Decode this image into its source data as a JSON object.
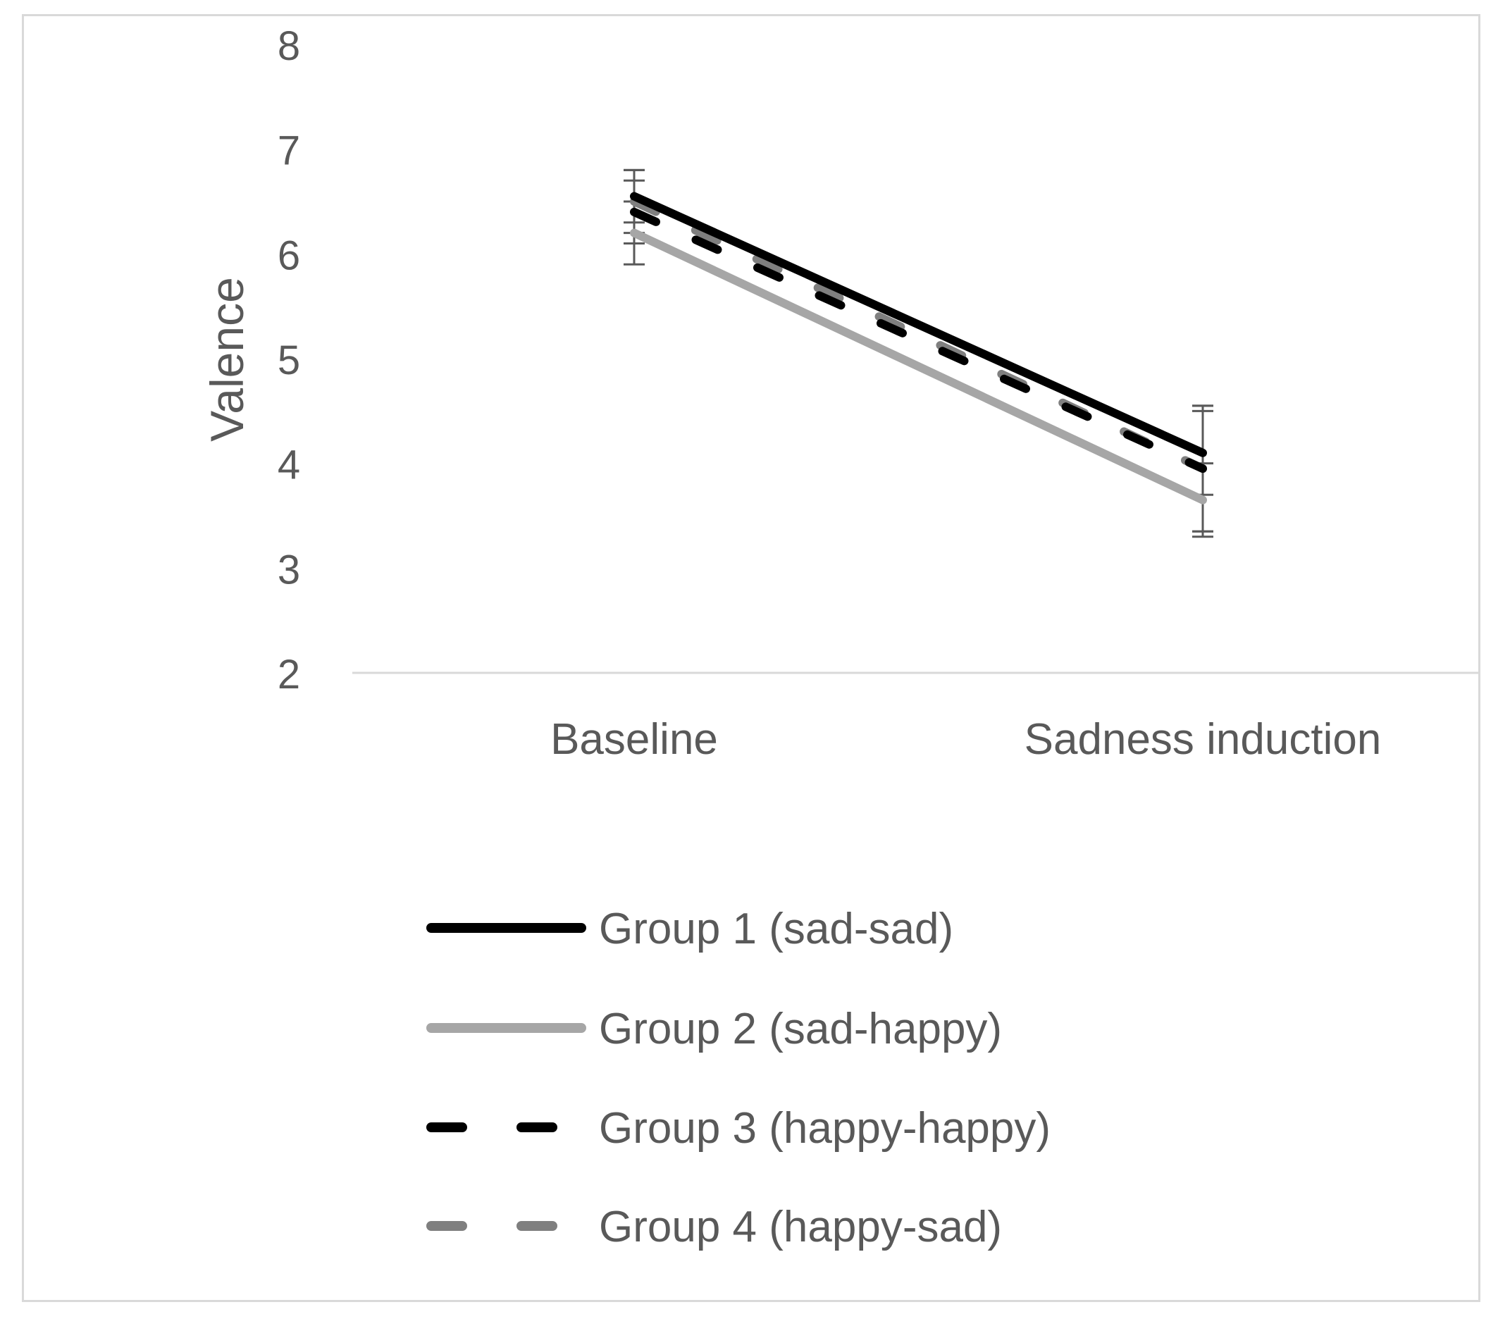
{
  "chart_data": {
    "type": "line",
    "title": "",
    "xlabel": "",
    "ylabel": "Valence",
    "categories": [
      "Baseline",
      "Sadness induction"
    ],
    "ylim": [
      2,
      8
    ],
    "yticks": [
      2,
      3,
      4,
      5,
      6,
      7,
      8
    ],
    "grid": false,
    "legend_position": "bottom",
    "series": [
      {
        "name": "Group 1 (sad-sad)",
        "values": [
          6.55,
          4.1
        ],
        "error": [
          0.25,
          0.4
        ],
        "color": "#000000",
        "dash": "solid"
      },
      {
        "name": "Group 2 (sad-happy)",
        "values": [
          6.2,
          3.65
        ],
        "error": [
          0.3,
          0.35
        ],
        "color": "#a6a6a6",
        "dash": "solid"
      },
      {
        "name": "Group 3 (happy-happy)",
        "values": [
          6.4,
          3.95
        ],
        "error": [
          0.3,
          0.6
        ],
        "color": "#000000",
        "dash": "dash"
      },
      {
        "name": "Group 4 (happy-sad)",
        "values": [
          6.5,
          3.95
        ],
        "error": [
          0.3,
          0.6
        ],
        "color": "#7f7f7f",
        "dash": "dash"
      }
    ]
  }
}
